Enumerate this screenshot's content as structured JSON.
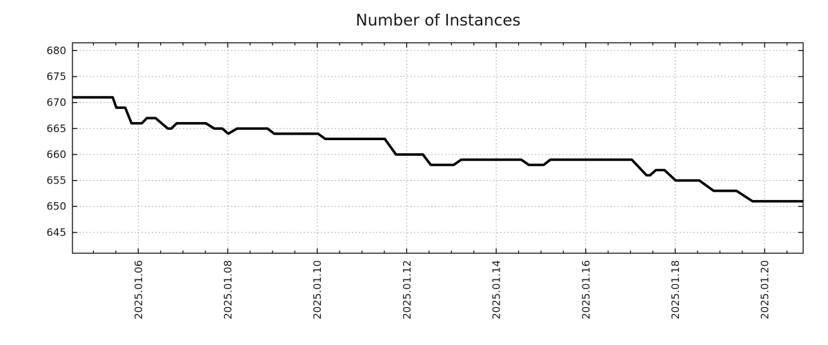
{
  "colors": {
    "background": "#ffffff",
    "axis_border": "#000000",
    "grid": "#adadad",
    "text": "#1a1a1a",
    "series_line": "#000000"
  },
  "chart_data": {
    "type": "line",
    "title": "Number of Instances",
    "xlabel": "",
    "ylabel": "",
    "legend_position": "none",
    "grid": {
      "show": true,
      "dash": "2,3"
    },
    "x_axis": {
      "unit": "date (day of January 2025, decimal)",
      "lim": [
        4.53,
        20.86
      ],
      "minor_tick_step": 0.5,
      "major_ticks": [
        {
          "value": 6,
          "label": "2025.01.06"
        },
        {
          "value": 8,
          "label": "2025.01.08"
        },
        {
          "value": 10,
          "label": "2025.01.10"
        },
        {
          "value": 12,
          "label": "2025.01.12"
        },
        {
          "value": 14,
          "label": "2025.01.14"
        },
        {
          "value": 16,
          "label": "2025.01.16"
        },
        {
          "value": 18,
          "label": "2025.01.18"
        },
        {
          "value": 20,
          "label": "2025.01.20"
        }
      ]
    },
    "y_axis": {
      "lim": [
        641.0,
        681.5
      ],
      "ticks": [
        645,
        650,
        655,
        660,
        665,
        670,
        675,
        680
      ]
    },
    "series": [
      {
        "name": "Number of Instances",
        "color": "#000000",
        "line_width": 3.6,
        "points": [
          [
            4.53,
            671
          ],
          [
            5.43,
            671
          ],
          [
            5.51,
            669
          ],
          [
            5.71,
            669
          ],
          [
            5.85,
            666
          ],
          [
            6.08,
            666
          ],
          [
            6.19,
            667
          ],
          [
            6.39,
            667
          ],
          [
            6.66,
            665
          ],
          [
            6.74,
            665
          ],
          [
            6.86,
            666
          ],
          [
            7.51,
            666
          ],
          [
            7.7,
            665
          ],
          [
            7.88,
            665
          ],
          [
            8.01,
            664
          ],
          [
            8.21,
            665
          ],
          [
            8.89,
            665
          ],
          [
            9.04,
            664
          ],
          [
            10.02,
            664
          ],
          [
            10.18,
            663
          ],
          [
            11.51,
            663
          ],
          [
            11.76,
            660
          ],
          [
            12.36,
            660
          ],
          [
            12.54,
            658
          ],
          [
            13.05,
            658
          ],
          [
            13.22,
            659
          ],
          [
            14.56,
            659
          ],
          [
            14.73,
            658
          ],
          [
            15.06,
            658
          ],
          [
            15.21,
            659
          ],
          [
            17.03,
            659
          ],
          [
            17.36,
            656
          ],
          [
            17.44,
            656
          ],
          [
            17.57,
            657
          ],
          [
            17.76,
            657
          ],
          [
            18.01,
            655
          ],
          [
            18.54,
            655
          ],
          [
            18.86,
            653
          ],
          [
            19.37,
            653
          ],
          [
            19.73,
            651
          ],
          [
            20.86,
            651
          ]
        ]
      }
    ]
  }
}
